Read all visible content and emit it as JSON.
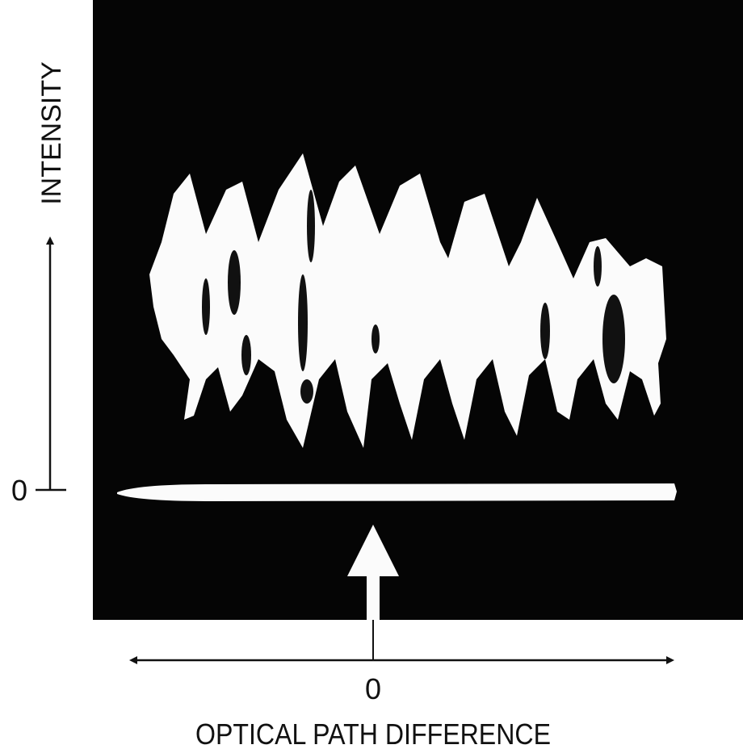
{
  "axes": {
    "y_label": "INTENSITY",
    "y_zero": "0",
    "x_zero": "0",
    "x_label": "OPTICAL PATH DIFFERENCE"
  }
}
